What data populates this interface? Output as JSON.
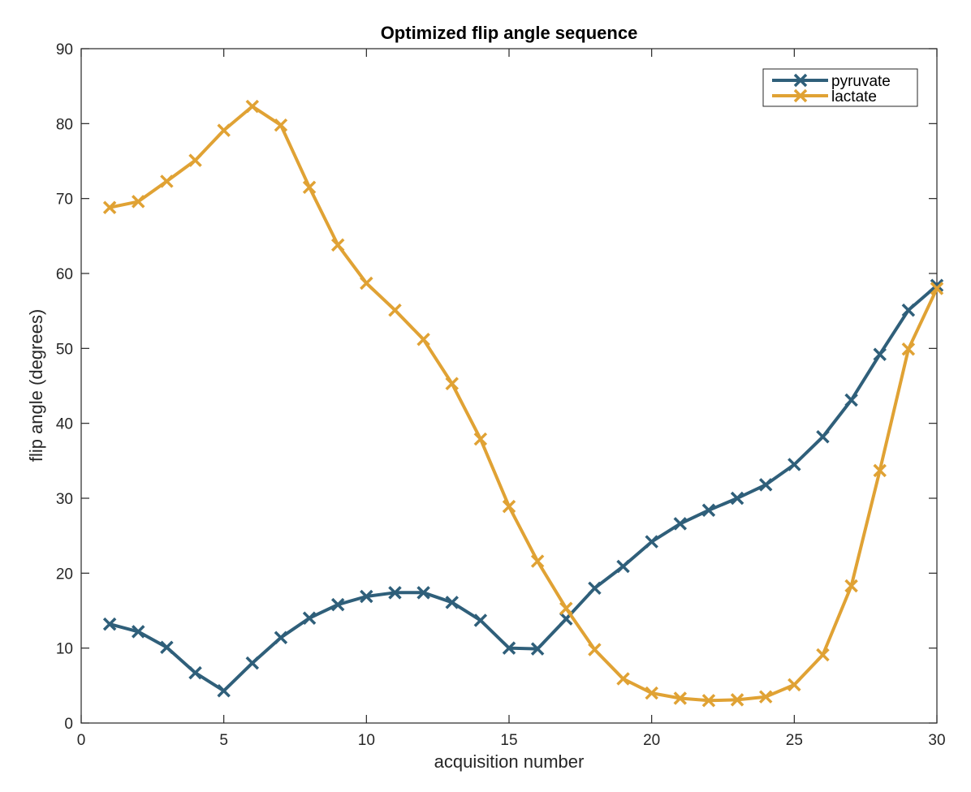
{
  "chart_data": {
    "type": "line",
    "title": "Optimized flip angle sequence",
    "xlabel": "acquisition number",
    "ylabel": "flip angle (degrees)",
    "xlim": [
      0,
      30
    ],
    "ylim": [
      0,
      90
    ],
    "xticks": [
      0,
      5,
      10,
      15,
      20,
      25,
      30
    ],
    "yticks": [
      0,
      10,
      20,
      30,
      40,
      50,
      60,
      70,
      80,
      90
    ],
    "grid": false,
    "legend_position": "top-right",
    "x": [
      1,
      2,
      3,
      4,
      5,
      6,
      7,
      8,
      9,
      10,
      11,
      12,
      13,
      14,
      15,
      16,
      17,
      18,
      19,
      20,
      21,
      22,
      23,
      24,
      25,
      26,
      27,
      28,
      29,
      30
    ],
    "series": [
      {
        "name": "pyruvate",
        "color": "#2f5f7a",
        "marker": "x",
        "values": [
          13.2,
          12.2,
          10.1,
          6.7,
          4.3,
          8.0,
          11.4,
          14.0,
          15.8,
          16.9,
          17.4,
          17.4,
          16.1,
          13.7,
          10.0,
          9.9,
          13.9,
          18.0,
          20.9,
          24.2,
          26.6,
          28.4,
          30.0,
          31.8,
          34.5,
          38.2,
          43.1,
          49.2,
          55.1,
          58.4
        ]
      },
      {
        "name": "lactate",
        "color": "#e0a234",
        "marker": "x",
        "values": [
          68.8,
          69.6,
          72.3,
          75.1,
          79.1,
          82.3,
          79.8,
          71.5,
          63.8,
          58.7,
          55.1,
          51.2,
          45.3,
          37.9,
          28.9,
          21.6,
          15.3,
          9.8,
          5.9,
          4.0,
          3.3,
          3.0,
          3.1,
          3.5,
          5.1,
          9.1,
          18.3,
          33.7,
          49.9,
          58.0
        ]
      }
    ]
  }
}
